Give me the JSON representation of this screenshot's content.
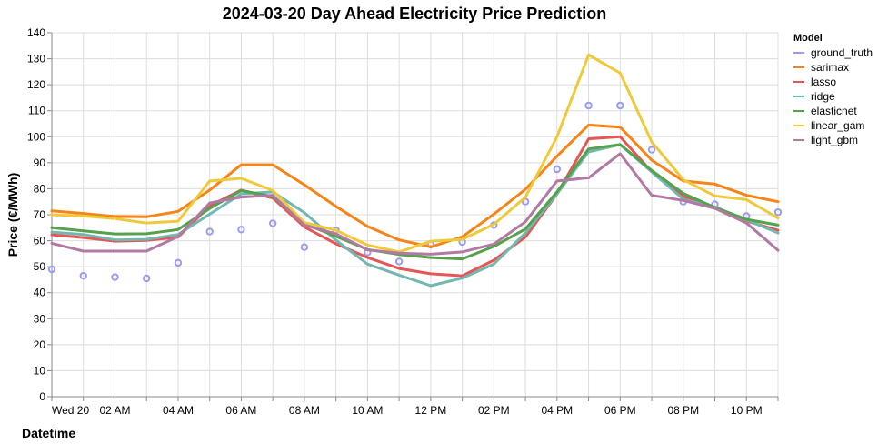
{
  "chart_data": {
    "type": "line",
    "title": "2024-03-20 Day Ahead Electricity Price Prediction",
    "xlabel": "Datetime",
    "ylabel": "Price (€/MWh)",
    "ylim": [
      0,
      140
    ],
    "yticks": [
      0,
      10,
      20,
      30,
      40,
      50,
      60,
      70,
      80,
      90,
      100,
      110,
      120,
      130,
      140
    ],
    "x_hours": [
      0,
      1,
      2,
      3,
      4,
      5,
      6,
      7,
      8,
      9,
      10,
      11,
      12,
      13,
      14,
      15,
      16,
      17,
      18,
      19,
      20,
      21,
      22,
      23
    ],
    "xlim_hours": [
      0,
      23
    ],
    "xticks": [
      {
        "hour": 0,
        "label": "Wed 20"
      },
      {
        "hour": 2,
        "label": "02 AM"
      },
      {
        "hour": 4,
        "label": "04 AM"
      },
      {
        "hour": 6,
        "label": "06 AM"
      },
      {
        "hour": 8,
        "label": "08 AM"
      },
      {
        "hour": 10,
        "label": "10 AM"
      },
      {
        "hour": 12,
        "label": "12 PM"
      },
      {
        "hour": 14,
        "label": "02 PM"
      },
      {
        "hour": 16,
        "label": "04 PM"
      },
      {
        "hour": 18,
        "label": "06 PM"
      },
      {
        "hour": 20,
        "label": "08 PM"
      },
      {
        "hour": 22,
        "label": "10 PM"
      }
    ],
    "grid": true,
    "legend": {
      "title": "Model",
      "placement": "right"
    },
    "series": [
      {
        "name": "ground_truth",
        "mark": "point",
        "color": "#9b9bef",
        "values": [
          49,
          46.5,
          46,
          45.5,
          51.5,
          63.5,
          64.3,
          66.7,
          57.5,
          64,
          55.5,
          52,
          58.5,
          59.5,
          66,
          75,
          87.5,
          112,
          112,
          95,
          75,
          74,
          69.5,
          71
        ]
      },
      {
        "name": "sarimax",
        "mark": "line",
        "color": "#f58518",
        "values": [
          71.5,
          70.5,
          69.3,
          69.2,
          71.3,
          79.5,
          89.2,
          89.2,
          81.5,
          73.2,
          65.5,
          60.3,
          57.6,
          61.5,
          70.2,
          79.8,
          92.5,
          104.5,
          103.7,
          91,
          83,
          81.8,
          77.5,
          75
        ]
      },
      {
        "name": "lasso",
        "mark": "line",
        "color": "#e45756",
        "values": [
          62.3,
          61.2,
          59.8,
          60.1,
          61.4,
          73.4,
          79.5,
          76.4,
          65.3,
          58.8,
          53.5,
          49.3,
          47.3,
          46.5,
          52.5,
          61.4,
          78,
          99.2,
          100,
          86.5,
          77,
          72.5,
          67.5,
          64
        ]
      },
      {
        "name": "ridge",
        "mark": "line",
        "color": "#72b7b2",
        "values": [
          63.3,
          62.4,
          60.3,
          60.5,
          62.4,
          70.2,
          78,
          78.8,
          70.8,
          60.2,
          51,
          46.8,
          42.7,
          45.6,
          51,
          63,
          78,
          94.2,
          97,
          86.5,
          76,
          73,
          68,
          63
        ]
      },
      {
        "name": "elasticnet",
        "mark": "line",
        "color": "#54a24b",
        "values": [
          65,
          63.8,
          62.6,
          62.7,
          64.3,
          72.4,
          79.3,
          77,
          66.5,
          61.7,
          56.6,
          54.7,
          53.5,
          53,
          57.8,
          64.5,
          78.8,
          95.3,
          97,
          87,
          78.2,
          72.8,
          68.2,
          66
        ]
      },
      {
        "name": "linear_gam",
        "mark": "line",
        "color": "#eeca3b",
        "values": [
          70,
          69.5,
          68.5,
          66.8,
          67.5,
          83,
          84,
          79.3,
          67,
          64,
          58.3,
          55.7,
          59.8,
          60.5,
          66.3,
          76.8,
          100,
          131.5,
          124.5,
          98,
          83.5,
          77.2,
          75.8,
          68.7
        ]
      },
      {
        "name": "light_gbm",
        "mark": "line",
        "color": "#b279a2",
        "values": [
          59,
          56,
          56,
          56,
          61.6,
          74.5,
          76.8,
          77.5,
          66,
          62.6,
          56.5,
          55.2,
          54.8,
          55.7,
          58.7,
          67.3,
          83,
          84.2,
          93.5,
          77.5,
          75.5,
          72.5,
          66.8,
          56.3
        ]
      }
    ]
  }
}
